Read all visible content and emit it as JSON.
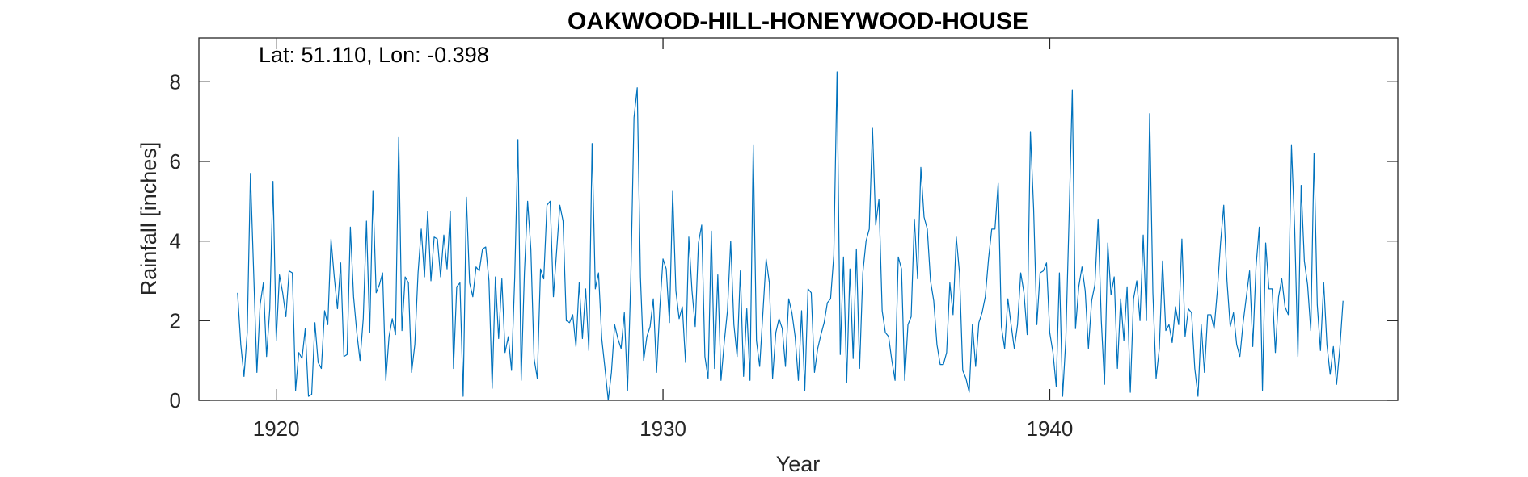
{
  "chart_data": {
    "type": "line",
    "title": "OAKWOOD-HILL-HONEYWOOD-HOUSE",
    "xlabel": "Year",
    "ylabel": "Rainfall [inches]",
    "annotation": "Lat: 51.110, Lon: -0.398",
    "xlim": [
      1918,
      1949
    ],
    "ylim": [
      0,
      9.1
    ],
    "xticks": [
      1920,
      1930,
      1940
    ],
    "yticks": [
      0,
      2,
      4,
      6,
      8
    ],
    "grid": false,
    "line_color": "#0072BD",
    "axis_color": "#262626",
    "series": [
      {
        "x_start": 1919.0,
        "x_step": 0.0833333,
        "values": [
          2.7,
          1.4,
          0.6,
          1.7,
          5.7,
          3.2,
          0.7,
          2.4,
          2.95,
          1.1,
          2.3,
          5.5,
          1.5,
          3.15,
          2.7,
          2.1,
          3.25,
          3.2,
          0.25,
          1.2,
          1.05,
          1.8,
          0.1,
          0.15,
          1.95,
          0.95,
          0.8,
          2.25,
          1.9,
          4.05,
          3.1,
          2.3,
          3.45,
          1.1,
          1.15,
          4.35,
          2.6,
          1.7,
          1.0,
          2.05,
          4.5,
          1.7,
          5.25,
          2.7,
          2.9,
          3.2,
          0.5,
          1.6,
          2.05,
          1.65,
          6.6,
          1.75,
          3.1,
          2.95,
          0.7,
          1.4,
          3.2,
          4.3,
          3.1,
          4.75,
          3.0,
          4.1,
          4.05,
          3.1,
          4.15,
          3.3,
          4.75,
          0.8,
          2.85,
          2.95,
          0.1,
          5.1,
          2.95,
          2.6,
          3.35,
          3.25,
          3.8,
          3.85,
          3.0,
          0.3,
          3.1,
          1.55,
          3.05,
          1.2,
          1.6,
          0.75,
          3.1,
          6.55,
          0.5,
          3.2,
          5.0,
          3.8,
          1.05,
          0.55,
          3.3,
          3.05,
          4.9,
          5.0,
          2.6,
          3.75,
          4.9,
          4.5,
          2.0,
          1.95,
          2.15,
          1.35,
          2.95,
          1.55,
          2.8,
          1.25,
          6.45,
          2.8,
          3.2,
          1.55,
          0.8,
          0.0,
          0.7,
          1.9,
          1.55,
          1.3,
          2.2,
          0.25,
          3.0,
          7.1,
          7.85,
          3.1,
          1.0,
          1.6,
          1.85,
          2.55,
          0.7,
          2.3,
          3.55,
          3.3,
          1.95,
          5.25,
          2.75,
          2.05,
          2.35,
          0.95,
          4.1,
          2.75,
          1.85,
          3.95,
          4.4,
          1.1,
          0.55,
          4.25,
          0.8,
          3.15,
          0.5,
          1.45,
          2.25,
          4.0,
          1.9,
          1.1,
          3.25,
          0.6,
          2.3,
          0.5,
          6.4,
          1.5,
          0.85,
          2.2,
          3.55,
          2.95,
          0.55,
          1.7,
          2.05,
          1.8,
          0.85,
          2.55,
          2.2,
          1.6,
          0.5,
          2.25,
          0.25,
          2.8,
          2.7,
          0.7,
          1.3,
          1.65,
          1.95,
          2.45,
          2.55,
          3.65,
          8.25,
          1.15,
          3.6,
          0.45,
          3.3,
          1.05,
          3.8,
          0.8,
          3.2,
          4.0,
          4.3,
          6.85,
          4.4,
          5.05,
          2.25,
          1.7,
          1.6,
          1.0,
          0.5,
          3.6,
          3.3,
          0.5,
          1.9,
          2.1,
          4.55,
          3.05,
          5.85,
          4.6,
          4.3,
          3.0,
          2.5,
          1.4,
          0.9,
          0.9,
          1.2,
          2.95,
          2.15,
          4.1,
          3.2,
          0.75,
          0.55,
          0.2,
          1.9,
          0.85,
          1.95,
          2.2,
          2.6,
          3.55,
          4.3,
          4.3,
          5.45,
          1.85,
          1.3,
          2.55,
          1.9,
          1.3,
          1.9,
          3.2,
          2.7,
          1.65,
          6.75,
          4.8,
          1.9,
          3.2,
          3.25,
          3.45,
          1.7,
          1.2,
          0.35,
          3.2,
          0.1,
          1.55,
          4.6,
          7.8,
          1.8,
          2.85,
          3.35,
          2.75,
          1.3,
          2.5,
          2.9,
          4.55,
          2.0,
          0.4,
          3.95,
          2.65,
          3.1,
          0.8,
          2.55,
          1.5,
          2.85,
          0.2,
          2.55,
          3.0,
          2.0,
          4.15,
          2.0,
          7.2,
          2.7,
          0.55,
          1.3,
          3.5,
          1.75,
          1.9,
          1.45,
          2.35,
          1.9,
          4.05,
          1.6,
          2.3,
          2.2,
          0.8,
          0.1,
          1.9,
          0.7,
          2.15,
          2.15,
          1.8,
          2.75,
          3.95,
          4.9,
          3.0,
          1.85,
          2.2,
          1.4,
          1.1,
          1.95,
          2.6,
          3.25,
          1.35,
          3.35,
          4.35,
          0.25,
          3.95,
          2.8,
          2.8,
          1.2,
          2.6,
          3.05,
          2.35,
          2.15,
          6.4,
          4.3,
          1.1,
          5.4,
          3.5,
          2.9,
          1.75,
          6.2,
          2.4,
          1.25,
          2.95,
          1.4,
          0.65,
          1.35,
          0.4,
          1.3,
          2.5
        ]
      }
    ]
  }
}
